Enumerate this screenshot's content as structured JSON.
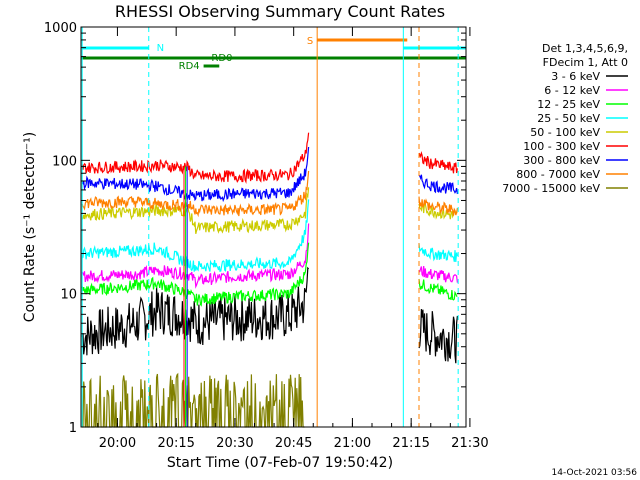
{
  "chart_data": {
    "type": "line",
    "title": "RHESSI Observing Summary Count Rates",
    "xlabel": "Start Time (07-Feb-07 19:50:42)",
    "ylabel": "Count Rate (s⁻¹ detector⁻¹)",
    "y_scale": "log",
    "ylim": [
      1,
      1000
    ],
    "xlim": [
      "19:50:42",
      "21:29:00"
    ],
    "x_tick_labels": [
      "20:00",
      "20:15",
      "20:30",
      "20:45",
      "21:00",
      "21:15",
      "21:30"
    ],
    "y_tick_labels": [
      "1",
      "10",
      "100",
      "1000"
    ],
    "legend_header": [
      "Det 1,3,4,5,6,9,",
      "FDecim 1, Att 0"
    ],
    "legend_placement": "right",
    "series": [
      {
        "name": "3 - 6 keV",
        "color": "#000000",
        "x": [
          "19:51",
          "20:05",
          "20:10",
          "20:18",
          "20:20",
          "20:30",
          "20:44",
          "20:48",
          "20:49",
          "21:17",
          "21:20",
          "21:27"
        ],
        "y": [
          4.8,
          6.0,
          7.5,
          6.8,
          6.0,
          6.5,
          6.8,
          8.5,
          20,
          5.5,
          5.0,
          4.5
        ]
      },
      {
        "name": "6 - 12 keV",
        "color": "#ff00ff",
        "x": [
          "19:51",
          "20:05",
          "20:10",
          "20:18",
          "20:20",
          "20:30",
          "20:44",
          "20:48",
          "20:49",
          "21:17",
          "21:20",
          "21:27"
        ],
        "y": [
          13.5,
          14.0,
          15.0,
          14.0,
          12.5,
          13.5,
          14.0,
          18,
          35,
          15,
          14,
          13
        ]
      },
      {
        "name": "12 - 25 keV",
        "color": "#00ff00",
        "x": [
          "19:51",
          "20:05",
          "20:10",
          "20:18",
          "20:20",
          "20:30",
          "20:44",
          "20:48",
          "20:49",
          "21:17",
          "21:20",
          "21:27"
        ],
        "y": [
          10.5,
          11.5,
          12.0,
          10.0,
          9.0,
          9.5,
          10.0,
          14,
          30,
          12,
          11,
          9.5
        ]
      },
      {
        "name": "25 - 50 keV",
        "color": "#00ffff",
        "x": [
          "19:51",
          "20:05",
          "20:10",
          "20:18",
          "20:20",
          "20:30",
          "20:44",
          "20:48",
          "20:49",
          "21:17",
          "21:20",
          "21:27"
        ],
        "y": [
          20,
          21,
          22,
          17,
          16,
          16.5,
          17,
          28,
          55,
          22,
          20,
          19
        ]
      },
      {
        "name": "50 - 100 keV",
        "color": "#cccc00",
        "x": [
          "19:51",
          "20:05",
          "20:10",
          "20:18",
          "20:20",
          "20:30",
          "20:44",
          "20:48",
          "20:49",
          "21:17",
          "21:20",
          "21:27"
        ],
        "y": [
          39,
          41,
          42,
          42,
          31,
          32,
          33,
          40,
          70,
          45,
          42,
          38
        ]
      },
      {
        "name": "100 - 300 keV",
        "color": "#ff0000",
        "x": [
          "19:51",
          "20:05",
          "20:10",
          "20:18",
          "20:20",
          "20:30",
          "20:44",
          "20:48",
          "20:49",
          "21:17",
          "21:20",
          "21:27"
        ],
        "y": [
          88,
          90,
          92,
          88,
          76,
          76,
          78,
          110,
          180,
          105,
          95,
          86
        ]
      },
      {
        "name": "300 - 800 keV",
        "color": "#0000ff",
        "x": [
          "19:51",
          "20:05",
          "20:10",
          "20:18",
          "20:20",
          "20:30",
          "20:44",
          "20:48",
          "20:49",
          "21:17",
          "21:20",
          "21:27"
        ],
        "y": [
          68,
          66,
          64,
          55,
          54,
          56,
          57,
          80,
          130,
          72,
          65,
          60
        ]
      },
      {
        "name": "800 - 7000 keV",
        "color": "#ff8000",
        "x": [
          "19:51",
          "20:05",
          "20:10",
          "20:18",
          "20:20",
          "20:30",
          "20:44",
          "20:48",
          "20:49",
          "21:17",
          "21:20",
          "21:27"
        ],
        "y": [
          48,
          49,
          47,
          46,
          43,
          42,
          43,
          55,
          90,
          50,
          45,
          42
        ]
      },
      {
        "name": "7000 - 15000 keV",
        "color": "#808000",
        "x": [
          "19:51",
          "20:05",
          "20:10",
          "20:20",
          "20:30",
          "20:40",
          "20:48"
        ],
        "y": [
          1.5,
          2.0,
          2.5,
          2.0,
          1.8,
          2.0,
          1.5
        ]
      }
    ],
    "annotations": [
      {
        "label": "N",
        "color": "#00ffff"
      },
      {
        "label": "S",
        "color": "#ff8000"
      },
      {
        "label": "RD0",
        "color": "#008000"
      },
      {
        "label": "RD4",
        "color": "#008000"
      }
    ],
    "timestamp": "14-Oct-2021 03:56"
  }
}
